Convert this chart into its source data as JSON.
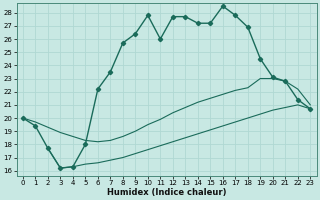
{
  "xlabel": "Humidex (Indice chaleur)",
  "xlim": [
    -0.5,
    23.5
  ],
  "ylim": [
    15.6,
    28.7
  ],
  "yticks": [
    16,
    17,
    18,
    19,
    20,
    21,
    22,
    23,
    24,
    25,
    26,
    27,
    28
  ],
  "xticks": [
    0,
    1,
    2,
    3,
    4,
    5,
    6,
    7,
    8,
    9,
    10,
    11,
    12,
    13,
    14,
    15,
    16,
    17,
    18,
    19,
    20,
    21,
    22,
    23
  ],
  "bg_color": "#c8e8e3",
  "grid_color": "#b0d8d3",
  "line_color": "#1a6b5a",
  "line1_x": [
    0,
    1,
    2,
    3,
    4,
    5,
    6,
    7,
    8,
    9,
    10,
    11,
    12,
    13,
    14,
    15,
    16,
    17,
    18,
    19,
    20,
    21,
    22,
    23
  ],
  "line1_y": [
    20.0,
    19.4,
    17.7,
    16.2,
    16.3,
    18.0,
    22.2,
    23.5,
    25.7,
    26.4,
    27.8,
    26.0,
    27.7,
    27.7,
    27.2,
    27.2,
    28.5,
    27.8,
    26.9,
    24.5,
    23.1,
    22.8,
    21.4,
    20.7
  ],
  "line2_x": [
    0,
    1,
    2,
    3,
    4,
    5,
    6,
    7,
    8,
    9,
    10,
    11,
    12,
    13,
    14,
    15,
    16,
    17,
    18,
    19,
    20,
    21,
    22,
    23
  ],
  "line2_y": [
    20.0,
    19.7,
    19.3,
    18.9,
    18.6,
    18.3,
    18.2,
    18.3,
    18.6,
    19.0,
    19.5,
    19.9,
    20.4,
    20.8,
    21.2,
    21.5,
    21.8,
    22.1,
    22.3,
    23.0,
    23.0,
    22.8,
    22.2,
    21.0
  ],
  "line3_x": [
    2,
    3,
    4,
    5,
    6,
    7,
    8,
    9,
    10,
    11,
    12,
    13,
    14,
    15,
    16,
    17,
    18,
    19,
    20,
    21,
    22,
    23
  ],
  "line3_y": [
    17.7,
    16.2,
    16.3,
    16.5,
    16.6,
    16.8,
    17.0,
    17.3,
    17.6,
    17.9,
    18.2,
    18.5,
    18.8,
    19.1,
    19.4,
    19.7,
    20.0,
    20.3,
    20.6,
    20.8,
    21.0,
    20.7
  ]
}
